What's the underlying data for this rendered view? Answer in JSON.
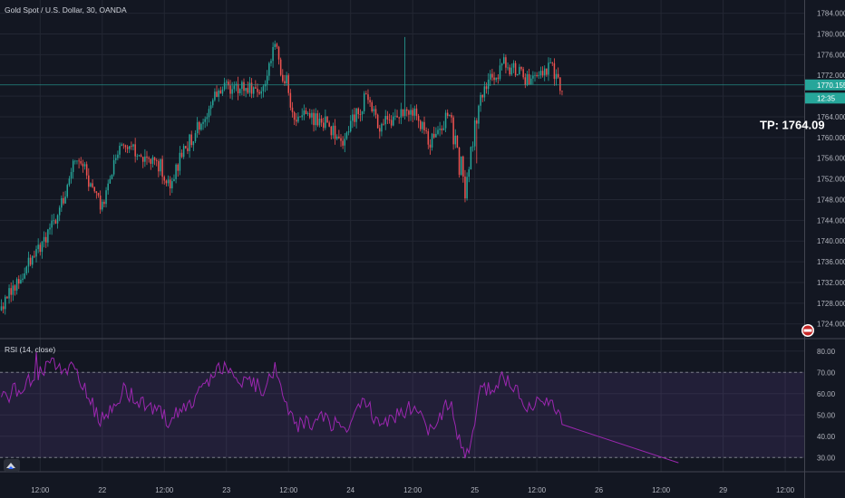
{
  "chart_data": [
    {
      "type": "candlestick",
      "title": "Gold Spot / U.S. Dollar, 30, OANDA",
      "price_axis": {
        "ticks": [
          "1724.000",
          "1728.000",
          "1732.000",
          "1736.000",
          "1740.000",
          "1744.000",
          "1748.000",
          "1752.000",
          "1756.000",
          "1760.000",
          "1764.000",
          "1768.000",
          "1772.000",
          "1776.000",
          "1780.000",
          "1784.000"
        ],
        "ylim": [
          1721.5,
          1785.5
        ]
      },
      "last_price": "1770.155",
      "countdown": "12:35",
      "countdown_price": 1767.6,
      "annotation": "TP: 1764.09",
      "annotation_price": 1761.6,
      "colors": {
        "up": "#26a69a",
        "down": "#ef5350",
        "last_price_line": "#26a69a"
      },
      "segments": [
        {
          "bars": 24,
          "start": 1726.6,
          "end": 1741.0,
          "amp": 1.4
        },
        {
          "bars": 6,
          "start": 1741.0,
          "end": 1744.8,
          "amp": 1.6
        },
        {
          "bars": 10,
          "start": 1744.8,
          "end": 1756.6,
          "amp": 2.0
        },
        {
          "bars": 12,
          "start": 1756.6,
          "end": 1746.0,
          "amp": 2.0
        },
        {
          "bars": 12,
          "start": 1746.0,
          "end": 1759.4,
          "amp": 2.0
        },
        {
          "bars": 16,
          "start": 1759.4,
          "end": 1754.8,
          "amp": 1.4
        },
        {
          "bars": 8,
          "start": 1754.8,
          "end": 1752.0,
          "amp": 2.2
        },
        {
          "bars": 14,
          "start": 1752.0,
          "end": 1761.8,
          "amp": 1.6
        },
        {
          "bars": 12,
          "start": 1761.8,
          "end": 1769.6,
          "amp": 1.5
        },
        {
          "bars": 22,
          "start": 1769.6,
          "end": 1769.4,
          "amp": 1.3
        },
        {
          "bars": 6,
          "start": 1769.4,
          "end": 1777.8,
          "amp": 1.7
        },
        {
          "bars": 10,
          "start": 1777.8,
          "end": 1764.6,
          "amp": 2.6
        },
        {
          "bars": 14,
          "start": 1764.6,
          "end": 1763.4,
          "amp": 1.5
        },
        {
          "bars": 12,
          "start": 1763.4,
          "end": 1759.4,
          "amp": 1.6
        },
        {
          "bars": 10,
          "start": 1759.4,
          "end": 1767.6,
          "amp": 1.9
        },
        {
          "bars": 8,
          "start": 1767.6,
          "end": 1762.4,
          "amp": 1.5
        },
        {
          "bars": 16,
          "start": 1762.4,
          "end": 1765.6,
          "amp": 1.3
        },
        {
          "bars": 10,
          "start": 1765.6,
          "end": 1759.2,
          "amp": 1.3
        },
        {
          "bars": 10,
          "start": 1759.2,
          "end": 1764.8,
          "amp": 1.4
        },
        {
          "bars": 8,
          "start": 1764.8,
          "end": 1750.0,
          "amp": 2.8
        },
        {
          "bars": 8,
          "start": 1750.0,
          "end": 1768.6,
          "amp": 2.2
        },
        {
          "bars": 12,
          "start": 1768.6,
          "end": 1774.2,
          "amp": 1.5
        },
        {
          "bars": 14,
          "start": 1774.2,
          "end": 1770.6,
          "amp": 1.5
        },
        {
          "bars": 10,
          "start": 1770.6,
          "end": 1774.0,
          "amp": 1.3
        },
        {
          "bars": 6,
          "start": 1774.0,
          "end": 1768.6,
          "amp": 1.3
        }
      ]
    },
    {
      "type": "line",
      "title": "RSI (14, close)",
      "y_axis": {
        "ticks": [
          "30.00",
          "40.00",
          "50.00",
          "60.00",
          "70.00",
          "80.00"
        ],
        "ylim": [
          25,
          85
        ]
      },
      "bands": {
        "upper": 70,
        "lower": 30,
        "fill": "#7e57c2",
        "line": "#9c27b0"
      },
      "segments": [
        {
          "points": 24,
          "start": 56,
          "end": 72,
          "amp": 4
        },
        {
          "points": 6,
          "start": 72,
          "end": 74,
          "amp": 4
        },
        {
          "points": 10,
          "start": 74,
          "end": 70,
          "amp": 4
        },
        {
          "points": 12,
          "start": 70,
          "end": 47,
          "amp": 4
        },
        {
          "points": 12,
          "start": 47,
          "end": 62,
          "amp": 4
        },
        {
          "points": 16,
          "start": 62,
          "end": 52,
          "amp": 4
        },
        {
          "points": 8,
          "start": 52,
          "end": 47,
          "amp": 4
        },
        {
          "points": 14,
          "start": 47,
          "end": 60,
          "amp": 4
        },
        {
          "points": 12,
          "start": 60,
          "end": 72,
          "amp": 4
        },
        {
          "points": 22,
          "start": 72,
          "end": 62,
          "amp": 4
        },
        {
          "points": 6,
          "start": 62,
          "end": 72,
          "amp": 4
        },
        {
          "points": 10,
          "start": 72,
          "end": 44,
          "amp": 4
        },
        {
          "points": 14,
          "start": 44,
          "end": 48,
          "amp": 4
        },
        {
          "points": 12,
          "start": 48,
          "end": 44,
          "amp": 4
        },
        {
          "points": 10,
          "start": 44,
          "end": 56,
          "amp": 4
        },
        {
          "points": 8,
          "start": 56,
          "end": 46,
          "amp": 4
        },
        {
          "points": 16,
          "start": 46,
          "end": 54,
          "amp": 4
        },
        {
          "points": 10,
          "start": 54,
          "end": 43,
          "amp": 4
        },
        {
          "points": 10,
          "start": 43,
          "end": 56,
          "amp": 4
        },
        {
          "points": 8,
          "start": 56,
          "end": 28,
          "amp": 4
        },
        {
          "points": 8,
          "start": 28,
          "end": 60,
          "amp": 4
        },
        {
          "points": 12,
          "start": 60,
          "end": 67,
          "amp": 4
        },
        {
          "points": 14,
          "start": 67,
          "end": 53,
          "amp": 4
        },
        {
          "points": 10,
          "start": 53,
          "end": 58,
          "amp": 4
        },
        {
          "points": 6,
          "start": 58,
          "end": 46,
          "amp": 4
        }
      ]
    }
  ],
  "time_axis": {
    "ticks": [
      {
        "label": "12:00",
        "bar": 20
      },
      {
        "label": "22",
        "bar": 52
      },
      {
        "label": "12:00",
        "bar": 84
      },
      {
        "label": "23",
        "bar": 116
      },
      {
        "label": "12:00",
        "bar": 148
      },
      {
        "label": "24",
        "bar": 180
      },
      {
        "label": "12:00",
        "bar": 212
      },
      {
        "label": "25",
        "bar": 244
      },
      {
        "label": "12:00",
        "bar": 276
      },
      {
        "label": "26",
        "bar": 308
      },
      {
        "label": "12:00",
        "bar": 340
      },
      {
        "label": "29",
        "bar": 372
      },
      {
        "label": "12:00",
        "bar": 404
      }
    ]
  }
}
